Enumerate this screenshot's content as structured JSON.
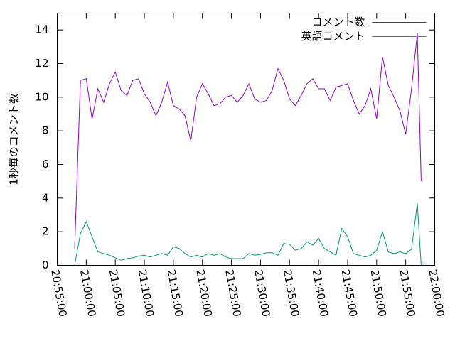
{
  "chart_data": {
    "type": "line",
    "y_label": "1秒毎のコメント数",
    "x": [
      "20:58:00",
      "20:59:00",
      "21:00:00",
      "21:01:00",
      "21:02:00",
      "21:03:00",
      "21:04:00",
      "21:05:00",
      "21:06:00",
      "21:07:00",
      "21:08:00",
      "21:09:00",
      "21:10:00",
      "21:11:00",
      "21:12:00",
      "21:13:00",
      "21:14:00",
      "21:15:00",
      "21:16:00",
      "21:17:00",
      "21:18:00",
      "21:19:00",
      "21:20:00",
      "21:21:00",
      "21:22:00",
      "21:23:00",
      "21:24:00",
      "21:25:00",
      "21:26:00",
      "21:27:00",
      "21:28:00",
      "21:29:00",
      "21:30:00",
      "21:31:00",
      "21:32:00",
      "21:33:00",
      "21:34:00",
      "21:35:00",
      "21:36:00",
      "21:37:00",
      "21:38:00",
      "21:39:00",
      "21:40:00",
      "21:41:00",
      "21:42:00",
      "21:43:00",
      "21:44:00",
      "21:45:00",
      "21:46:00",
      "21:47:00",
      "21:48:00",
      "21:49:00",
      "21:50:00",
      "21:51:00",
      "21:52:00",
      "21:53:00",
      "21:54:00",
      "21:55:00",
      "21:56:00",
      "21:57:00",
      "21:57:40"
    ],
    "series": [
      {
        "name": "コメント数",
        "color": "#9400d3",
        "values": [
          1.0,
          11.0,
          11.1,
          8.7,
          10.5,
          9.7,
          10.8,
          11.5,
          10.4,
          10.1,
          11.0,
          11.1,
          10.2,
          9.7,
          8.9,
          9.7,
          10.9,
          9.5,
          9.3,
          8.9,
          7.4,
          10.0,
          10.8,
          10.2,
          9.5,
          9.6,
          10.0,
          10.1,
          9.7,
          10.1,
          10.8,
          9.9,
          9.7,
          9.8,
          10.4,
          11.7,
          11.0,
          9.9,
          9.5,
          10.1,
          10.8,
          11.1,
          10.5,
          10.5,
          9.8,
          10.6,
          10.7,
          10.8,
          9.8,
          9.0,
          9.5,
          10.5,
          8.7,
          12.4,
          10.7,
          10.0,
          9.2,
          7.8,
          10.5,
          13.8,
          5.0
        ]
      },
      {
        "name": "英語コメント",
        "color": "#009e73",
        "values": [
          0.0,
          1.9,
          2.6,
          1.7,
          0.8,
          0.7,
          0.6,
          0.45,
          0.3,
          0.4,
          0.45,
          0.55,
          0.6,
          0.5,
          0.6,
          0.7,
          0.6,
          1.1,
          1.0,
          0.7,
          0.5,
          0.6,
          0.5,
          0.7,
          0.6,
          0.7,
          0.5,
          0.4,
          0.4,
          0.4,
          0.7,
          0.6,
          0.65,
          0.75,
          0.75,
          0.6,
          1.3,
          1.25,
          0.9,
          1.0,
          1.4,
          1.2,
          1.6,
          1.0,
          0.8,
          0.6,
          2.2,
          1.7,
          0.7,
          0.6,
          0.5,
          0.6,
          0.9,
          2.0,
          0.8,
          0.7,
          0.8,
          0.7,
          0.95,
          3.7,
          0.0
        ]
      }
    ],
    "xlim": [
      "20:55:00",
      "22:00:00"
    ],
    "xticks": [
      "20:55:00",
      "21:00:00",
      "21:05:00",
      "21:10:00",
      "21:15:00",
      "21:20:00",
      "21:25:00",
      "21:30:00",
      "21:35:00",
      "21:40:00",
      "21:45:00",
      "21:50:00",
      "21:55:00",
      "22:00:00"
    ],
    "ylim": [
      0,
      15
    ],
    "yticks": [
      0,
      2,
      4,
      6,
      8,
      10,
      12,
      14
    ],
    "legend": "top-right"
  }
}
